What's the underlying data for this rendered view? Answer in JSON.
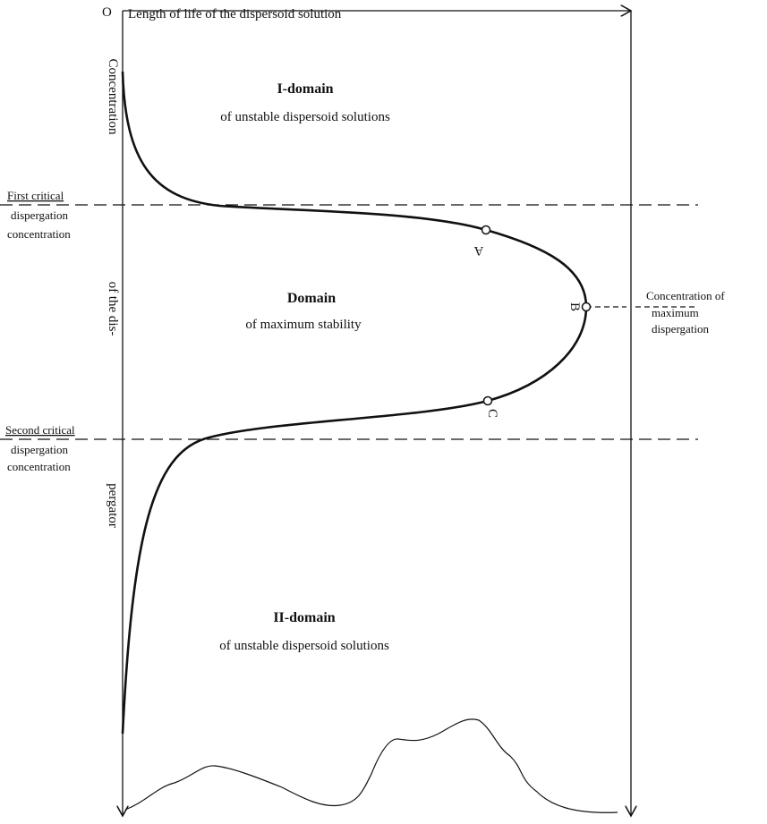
{
  "origin_label": "O",
  "x_axis_label": "Length of life of the dispersoid solution",
  "y_axis_label": [
    "Concentration",
    "of the dis-",
    "pergator"
  ],
  "boundaries": [
    {
      "lines": [
        "First critical",
        "dispergation",
        "concentration"
      ]
    },
    {
      "lines": [
        "Second critical",
        "dispergation",
        "concentration"
      ]
    }
  ],
  "domains": [
    {
      "title": "I-domain",
      "subtitle": "of unstable dispersoid solutions"
    },
    {
      "title": "Domain",
      "subtitle": "of maximum stability"
    },
    {
      "title": "II-domain",
      "subtitle": "of unstable dispersoid solutions"
    }
  ],
  "points": [
    {
      "label": "A"
    },
    {
      "label": "B"
    },
    {
      "label": "C"
    }
  ],
  "annotation": {
    "lines": [
      "Concentration of",
      "maximum",
      "dispergation"
    ]
  }
}
